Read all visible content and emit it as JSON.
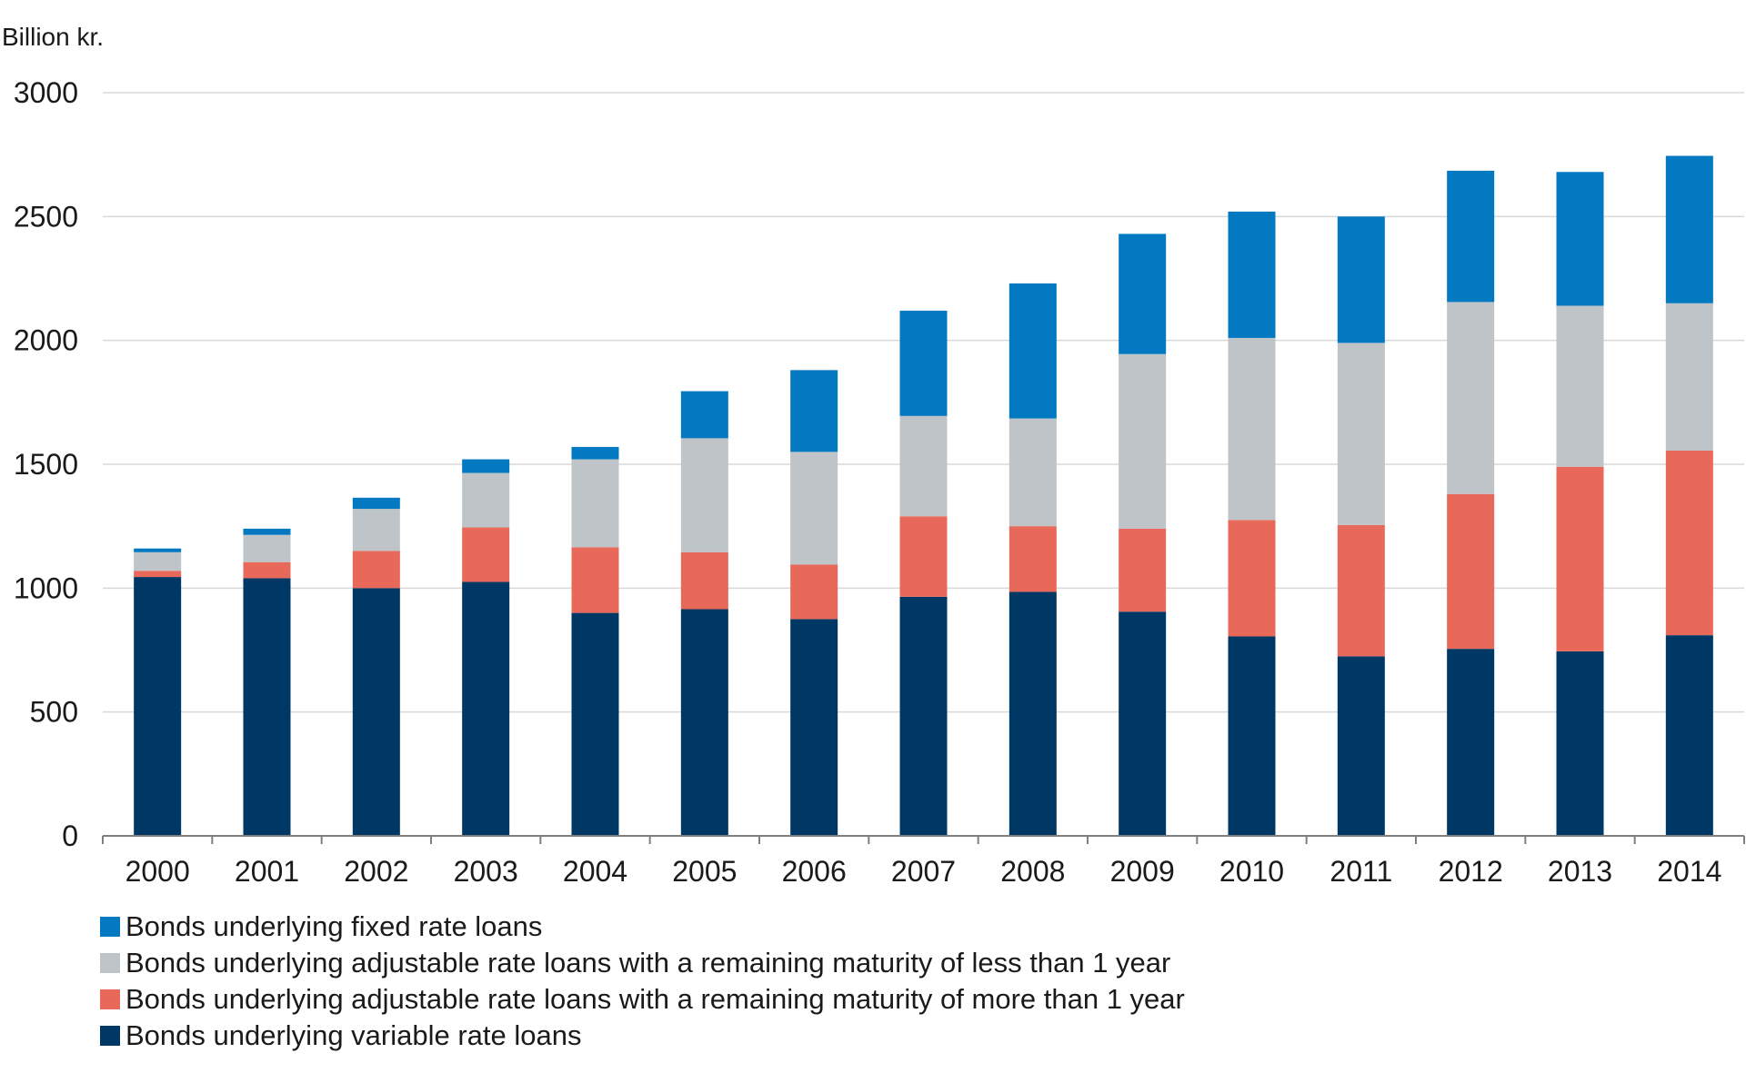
{
  "chart_data": {
    "type": "bar",
    "stacked": true,
    "ylabel": "Billion kr.",
    "ylim": [
      0,
      3000
    ],
    "yticks": [
      0,
      500,
      1000,
      1500,
      2000,
      2500,
      3000
    ],
    "grid": true,
    "legend_position": "bottom",
    "categories": [
      "2000",
      "2001",
      "2002",
      "2003",
      "2004",
      "2005",
      "2006",
      "2007",
      "2008",
      "2009",
      "2010",
      "2011",
      "2012",
      "2013",
      "2014"
    ],
    "series": [
      {
        "name": "Bonds underlying variable rate loans",
        "color": "#003865",
        "values": [
          1045,
          1040,
          1000,
          1025,
          900,
          915,
          875,
          965,
          985,
          905,
          805,
          725,
          755,
          745,
          810
        ]
      },
      {
        "name": "Bonds underlying adjustable rate loans with a remaining maturity of more than 1 year",
        "color": "#e8685a",
        "values": [
          25,
          65,
          150,
          220,
          265,
          230,
          220,
          325,
          265,
          335,
          470,
          530,
          625,
          745,
          745
        ]
      },
      {
        "name": "Bonds underlying adjustable rate loans with a remaining maturity of less than 1 year",
        "color": "#bec4c7",
        "values": [
          75,
          110,
          170,
          220,
          355,
          460,
          455,
          405,
          435,
          705,
          735,
          735,
          775,
          650,
          595
        ]
      },
      {
        "name": "Bonds underlying fixed rate loans",
        "color": "#0279c1",
        "values": [
          15,
          25,
          45,
          55,
          50,
          190,
          330,
          425,
          545,
          485,
          510,
          510,
          530,
          540,
          595
        ]
      }
    ],
    "legend_order": [
      3,
      2,
      1,
      0
    ]
  }
}
